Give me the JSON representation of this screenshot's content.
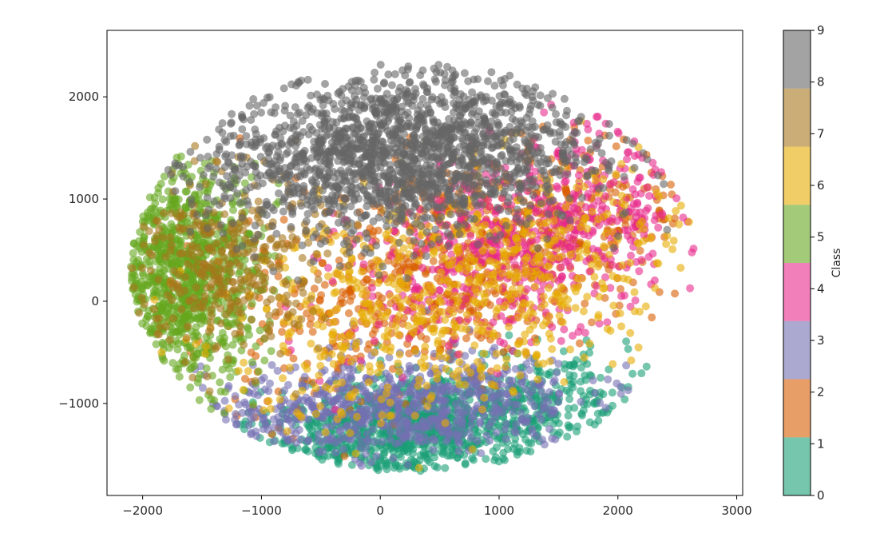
{
  "chart_data": {
    "type": "scatter",
    "title": "",
    "xlabel": "",
    "ylabel": "",
    "xlim": [
      -2300,
      3050
    ],
    "ylim": [
      -1900,
      2650
    ],
    "xticks": [
      -2000,
      -1000,
      0,
      1000,
      2000,
      3000
    ],
    "xtick_labels": [
      "−2000",
      "−1000",
      "0",
      "1000",
      "2000",
      "3000"
    ],
    "yticks": [
      -1000,
      0,
      1000,
      2000
    ],
    "ytick_labels": [
      "−1000",
      "0",
      "1000",
      "2000"
    ],
    "grid": false,
    "marker_alpha": 0.6,
    "colorbar": {
      "label": "Class",
      "range": [
        0,
        9
      ],
      "ticks": [
        0,
        1,
        2,
        3,
        4,
        5,
        6,
        7,
        8,
        9
      ],
      "tick_labels": [
        "0",
        "1",
        "2",
        "3",
        "4",
        "5",
        "6",
        "7",
        "8",
        "9"
      ],
      "colormap": "Dark2",
      "colors": [
        "#1b9e77",
        "#d95f02",
        "#7570b3",
        "#e7298a",
        "#66a61e",
        "#e6ab02",
        "#a6761d",
        "#666666"
      ]
    },
    "series": [
      {
        "class": 0,
        "color": "#1b9e77",
        "points": 1100,
        "center": [
          350,
          -1250
        ],
        "spread": [
          850,
          270
        ],
        "tilt": 0.18
      },
      {
        "class": 1,
        "color": "#d95f02",
        "points": 800,
        "center": [
          700,
          400
        ],
        "spread": [
          950,
          520
        ],
        "tilt": 0.35
      },
      {
        "class": 2,
        "color": "#7570b3",
        "points": 700,
        "center": [
          100,
          -1050
        ],
        "spread": [
          800,
          260
        ],
        "tilt": 0.1
      },
      {
        "class": 3,
        "color": "#e7298a",
        "points": 650,
        "center": [
          1300,
          650
        ],
        "spread": [
          750,
          450
        ],
        "tilt": 0.3
      },
      {
        "class": 4,
        "color": "#66a61e",
        "points": 900,
        "center": [
          -1650,
          250
        ],
        "spread": [
          320,
          520
        ],
        "tilt": 0
      },
      {
        "class": 5,
        "color": "#e6ab02",
        "points": 700,
        "center": [
          700,
          100
        ],
        "spread": [
          1100,
          550
        ],
        "tilt": 0.3
      },
      {
        "class": 6,
        "color": "#a6761d",
        "points": 350,
        "center": [
          -1300,
          350
        ],
        "spread": [
          400,
          450
        ],
        "tilt": 0
      },
      {
        "class": 7,
        "color": "#666666",
        "points": 1800,
        "center": [
          150,
          1450
        ],
        "spread": [
          800,
          400
        ],
        "tilt": 0.05
      }
    ]
  }
}
